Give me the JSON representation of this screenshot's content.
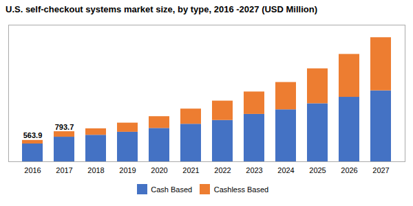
{
  "chart_data": {
    "type": "bar",
    "title": "U.S. self-checkout systems market size, by type, 2016 -2027 (USD Million)",
    "categories": [
      "2016",
      "2017",
      "2018",
      "2019",
      "2020",
      "2021",
      "2022",
      "2023",
      "2024",
      "2025",
      "2026",
      "2027"
    ],
    "series": [
      {
        "name": "Cash Based",
        "color": "#4472C4",
        "values": [
          470,
          650,
          700,
          780,
          880,
          990,
          1090,
          1250,
          1370,
          1530,
          1700,
          1870
        ]
      },
      {
        "name": "Cashless Based",
        "color": "#ED7D31",
        "values": [
          93.9,
          143.7,
          170,
          240,
          310,
          400,
          510,
          590,
          720,
          920,
          1130,
          1400
        ]
      }
    ],
    "stacked": true,
    "ylim": [
      0,
      3600
    ],
    "tick_labels": "x",
    "legend": "bottom",
    "annotations": [
      {
        "x": "2016",
        "y": 563.9,
        "text": "563.9"
      },
      {
        "x": "2017",
        "y": 793.7,
        "text": "793.7"
      }
    ]
  }
}
